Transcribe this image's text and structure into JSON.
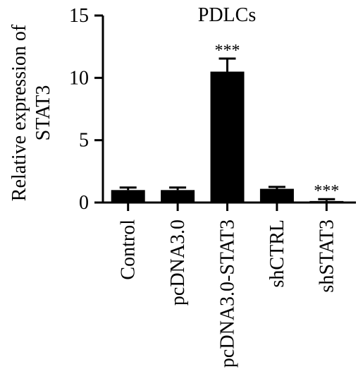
{
  "chart_data": {
    "type": "bar",
    "title": "PDLCs",
    "ylabel_lines": [
      "Relative expression of",
      "STAT3"
    ],
    "xlabel": "",
    "categories": [
      "Control",
      "pcDNA3.0",
      "pcDNA3.0-STAT3",
      "shCTRL",
      "shSTAT3"
    ],
    "values": [
      1.0,
      1.0,
      10.5,
      1.1,
      0.12
    ],
    "errors": [
      0.2,
      0.2,
      1.05,
      0.15,
      0.15
    ],
    "annotations": [
      "",
      "",
      "***",
      "",
      "***"
    ],
    "ylim": [
      0,
      15
    ],
    "yticks": [
      0,
      5,
      10,
      15
    ],
    "bar_color": "#000000",
    "grid": false,
    "legend": "none"
  }
}
